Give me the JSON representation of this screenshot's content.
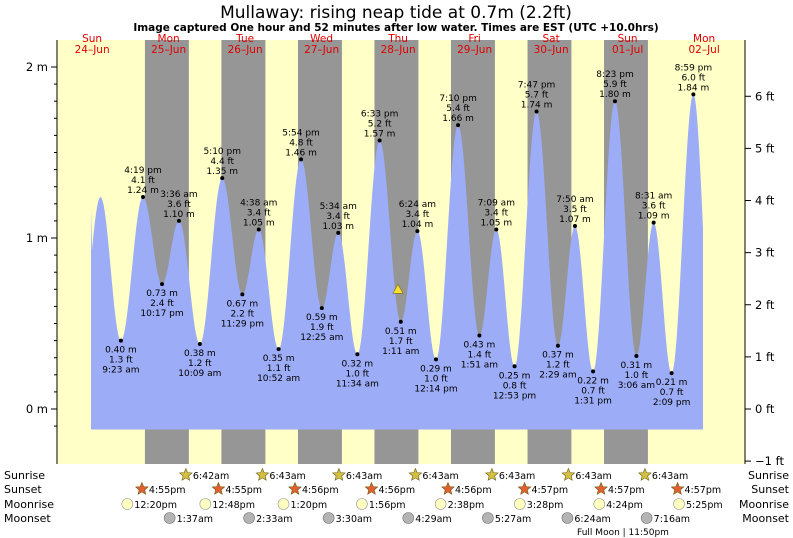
{
  "chart_data": {
    "type": "area",
    "title": "Mullaway: rising  neap tide at 0.7m (2.2ft)",
    "subtitle": "Image captured One hour and 52 minutes after low water. Times are EST (UTC +10.0hrs)",
    "ylim_m": [
      -0.17,
      2.06
    ],
    "left_ticks": [
      "2 m",
      "1 m",
      "0 m"
    ],
    "left_tick_values": [
      2,
      1,
      0
    ],
    "right_ticks": [
      "6 ft",
      "5 ft",
      "4 ft",
      "3 ft",
      "2 ft",
      "1 ft",
      "0 ft",
      "−1 ft"
    ],
    "right_tick_values": [
      6,
      5,
      4,
      3,
      2,
      1,
      0,
      -1
    ],
    "days": [
      {
        "name": "Sun",
        "date": "24–Jun"
      },
      {
        "name": "Mon",
        "date": "25–Jun"
      },
      {
        "name": "Tue",
        "date": "26–Jun"
      },
      {
        "name": "Wed",
        "date": "27–Jun"
      },
      {
        "name": "Thu",
        "date": "28–Jun"
      },
      {
        "name": "Fri",
        "date": "29–Jun"
      },
      {
        "name": "Sat",
        "date": "30–Jun"
      },
      {
        "name": "Sun",
        "date": "01–Jul"
      },
      {
        "name": "Mon",
        "date": "02–Jul"
      }
    ],
    "curve_start_height_m": 1.17,
    "curve_end_height_m": 0.34,
    "current_level_m": 0.7,
    "series": [
      {
        "name": "tide",
        "color": "#9cacf6",
        "points": [
          {
            "hour": 9.383,
            "height_m": 0.4,
            "time": "9:23 am",
            "ft": "1.3 ft",
            "kind": "low"
          },
          {
            "hour": 16.317,
            "height_m": 1.24,
            "time": "4:19 pm",
            "ft": "4.1 ft",
            "kind": "high"
          },
          {
            "hour": 22.283,
            "height_m": 0.73,
            "time": "10:17 pm",
            "ft": "2.4 ft",
            "kind": "low"
          },
          {
            "hour": 27.6,
            "height_m": 1.1,
            "time": "3:36 am",
            "ft": "3.6 ft",
            "kind": "high"
          },
          {
            "hour": 34.15,
            "height_m": 0.38,
            "time": "10:09 am",
            "ft": "1.2 ft",
            "kind": "low"
          },
          {
            "hour": 41.167,
            "height_m": 1.35,
            "time": "5:10 pm",
            "ft": "4.4 ft",
            "kind": "high"
          },
          {
            "hour": 47.483,
            "height_m": 0.67,
            "time": "11:29 pm",
            "ft": "2.2 ft",
            "kind": "low"
          },
          {
            "hour": 52.633,
            "height_m": 1.05,
            "time": "4:38 am",
            "ft": "3.4 ft",
            "kind": "high"
          },
          {
            "hour": 58.867,
            "height_m": 0.35,
            "time": "10:52 am",
            "ft": "1.1 ft",
            "kind": "low"
          },
          {
            "hour": 65.9,
            "height_m": 1.46,
            "time": "5:54 pm",
            "ft": "4.8 ft",
            "kind": "high"
          },
          {
            "hour": 72.417,
            "height_m": 0.59,
            "time": "12:25 am",
            "ft": "1.9 ft",
            "kind": "low"
          },
          {
            "hour": 77.567,
            "height_m": 1.03,
            "time": "5:34 am",
            "ft": "3.4 ft",
            "kind": "high"
          },
          {
            "hour": 83.567,
            "height_m": 0.32,
            "time": "11:34 am",
            "ft": "1.0 ft",
            "kind": "low"
          },
          {
            "hour": 90.55,
            "height_m": 1.57,
            "time": "6:33 pm",
            "ft": "5.2 ft",
            "kind": "high"
          },
          {
            "hour": 97.183,
            "height_m": 0.51,
            "time": "1:11 am",
            "ft": "1.7 ft",
            "kind": "low"
          },
          {
            "hour": 102.4,
            "height_m": 1.04,
            "time": "6:24 am",
            "ft": "3.4 ft",
            "kind": "high"
          },
          {
            "hour": 108.233,
            "height_m": 0.29,
            "time": "12:14 pm",
            "ft": "1.0 ft",
            "kind": "low"
          },
          {
            "hour": 115.167,
            "height_m": 1.66,
            "time": "7:10 pm",
            "ft": "5.4 ft",
            "kind": "high"
          },
          {
            "hour": 121.85,
            "height_m": 0.43,
            "time": "1:51 am",
            "ft": "1.4 ft",
            "kind": "low"
          },
          {
            "hour": 127.15,
            "height_m": 1.05,
            "time": "7:09 am",
            "ft": "3.4 ft",
            "kind": "high"
          },
          {
            "hour": 132.883,
            "height_m": 0.25,
            "time": "12:53 pm",
            "ft": "0.8 ft",
            "kind": "low"
          },
          {
            "hour": 139.783,
            "height_m": 1.74,
            "time": "7:47 pm",
            "ft": "5.7 ft",
            "kind": "high"
          },
          {
            "hour": 146.483,
            "height_m": 0.37,
            "time": "2:29 am",
            "ft": "1.2 ft",
            "kind": "low"
          },
          {
            "hour": 151.833,
            "height_m": 1.07,
            "time": "7:50 am",
            "ft": "3.5 ft",
            "kind": "high"
          },
          {
            "hour": 157.517,
            "height_m": 0.22,
            "time": "1:31 pm",
            "ft": "0.7 ft",
            "kind": "low"
          },
          {
            "hour": 164.383,
            "height_m": 1.8,
            "time": "8:23 pm",
            "ft": "5.9 ft",
            "kind": "high"
          },
          {
            "hour": 171.1,
            "height_m": 0.31,
            "time": "3:06 am",
            "ft": "1.0 ft",
            "kind": "low"
          },
          {
            "hour": 176.517,
            "height_m": 1.09,
            "time": "8:31 am",
            "ft": "3.6 ft",
            "kind": "high"
          },
          {
            "hour": 182.15,
            "height_m": 0.21,
            "time": "2:09 pm",
            "ft": "0.7 ft",
            "kind": "low"
          },
          {
            "hour": 188.983,
            "height_m": 1.84,
            "time": "8:59 pm",
            "ft": "6.0 ft",
            "kind": "high"
          }
        ]
      }
    ],
    "current_marker_hour": 96.3
  },
  "rows": {
    "sunrise_label": "Sunrise",
    "sunset_label": "Sunset",
    "moonrise_label": "Moonrise",
    "moonset_label": "Moonset",
    "sunrise": [
      {
        "hour": 30.7,
        "time": "6:42am"
      },
      {
        "hour": 54.717,
        "time": "6:43am"
      },
      {
        "hour": 78.717,
        "time": "6:43am"
      },
      {
        "hour": 102.717,
        "time": "6:43am"
      },
      {
        "hour": 126.717,
        "time": "6:43am"
      },
      {
        "hour": 150.717,
        "time": "6:43am"
      },
      {
        "hour": 174.717,
        "time": "6:43am"
      }
    ],
    "sunset": [
      {
        "hour": 16.917,
        "time": "4:55pm"
      },
      {
        "hour": 40.917,
        "time": "4:55pm"
      },
      {
        "hour": 64.933,
        "time": "4:56pm"
      },
      {
        "hour": 88.933,
        "time": "4:56pm"
      },
      {
        "hour": 112.933,
        "time": "4:56pm"
      },
      {
        "hour": 136.95,
        "time": "4:57pm"
      },
      {
        "hour": 160.95,
        "time": "4:57pm"
      },
      {
        "hour": 184.95,
        "time": "4:57pm"
      }
    ],
    "moonrise": [
      {
        "hour": 12.333,
        "time": "12:20pm"
      },
      {
        "hour": 36.8,
        "time": "12:48pm"
      },
      {
        "hour": 61.333,
        "time": "1:20pm"
      },
      {
        "hour": 85.933,
        "time": "1:56pm"
      },
      {
        "hour": 110.633,
        "time": "2:38pm"
      },
      {
        "hour": 135.467,
        "time": "3:28pm"
      },
      {
        "hour": 160.4,
        "time": "4:24pm"
      },
      {
        "hour": 185.417,
        "time": "5:25pm"
      }
    ],
    "moonset": [
      {
        "hour": 25.617,
        "time": "1:37am"
      },
      {
        "hour": 50.55,
        "time": "2:33am"
      },
      {
        "hour": 75.5,
        "time": "3:30am"
      },
      {
        "hour": 100.483,
        "time": "4:29am"
      },
      {
        "hour": 125.45,
        "time": "5:27am"
      },
      {
        "hour": 150.4,
        "time": "6:24am"
      },
      {
        "hour": 175.267,
        "time": "7:16am"
      }
    ],
    "full_moon_note": "Full Moon | 11:50pm"
  },
  "colors": {
    "day": "#ffffc8",
    "night": "#969696",
    "tide": "#9cacf6",
    "day_label": "#e00000",
    "sun_star": "#d4c040",
    "sunset_star": "#e06030",
    "moonrise": "#ffffc0",
    "moonset": "#b4b4b4",
    "marker": "#ffe030"
  }
}
